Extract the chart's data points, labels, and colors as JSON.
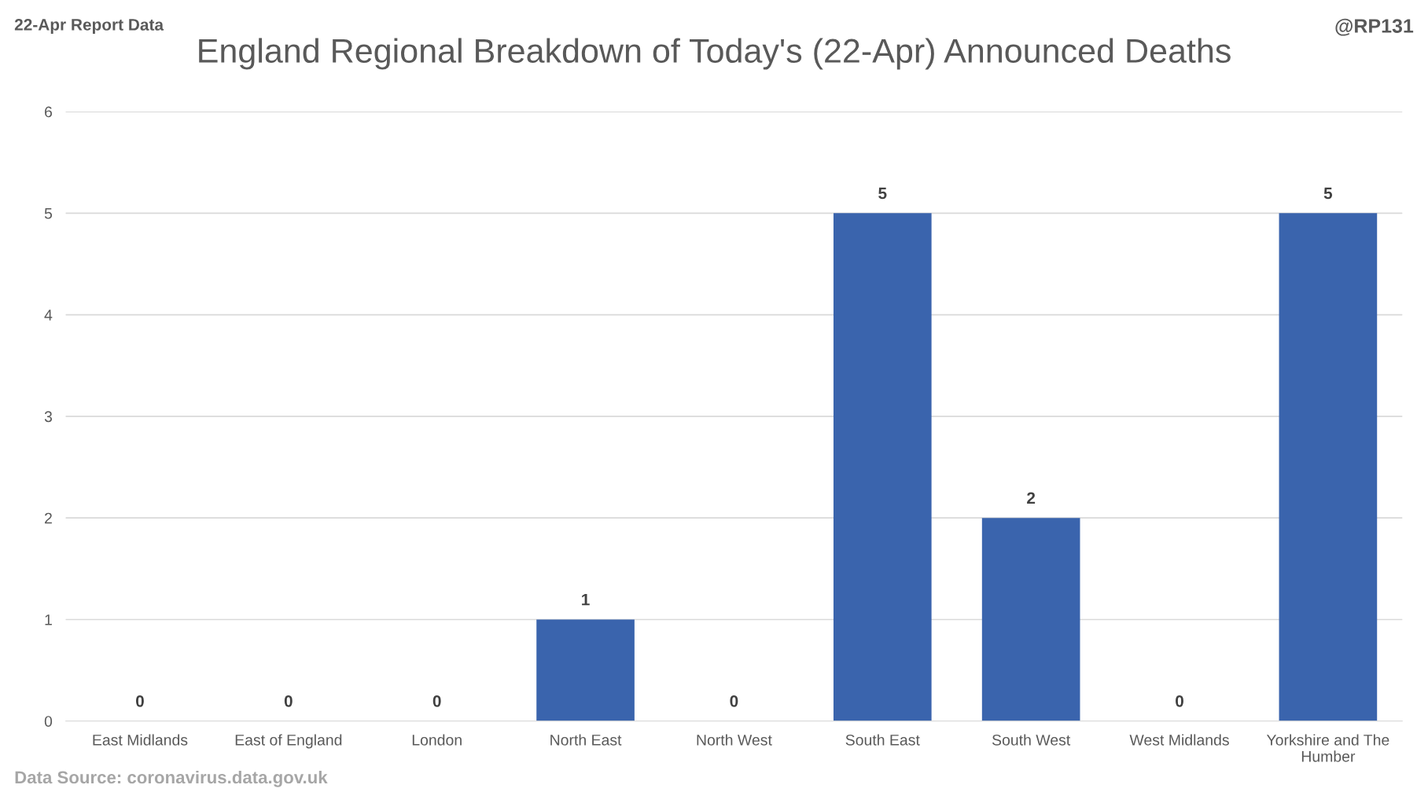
{
  "chart_data": {
    "type": "bar",
    "title": "England Regional Breakdown of Today's (22-Apr) Announced Deaths",
    "categories": [
      "East Midlands",
      "East of England",
      "London",
      "North East",
      "North West",
      "South East",
      "South West",
      "West Midlands",
      "Yorkshire and The Humber"
    ],
    "values": [
      0,
      0,
      0,
      1,
      0,
      5,
      2,
      0,
      5
    ],
    "color": "#3a64ad",
    "ylim": [
      0,
      6
    ],
    "yticks": [
      0,
      1,
      2,
      3,
      4,
      5,
      6
    ],
    "grid": "y",
    "data_labels": true,
    "annotations": [
      "22-Apr Report Data",
      "@RP131",
      "Data Source: coronavirus.data.gov.uk"
    ]
  }
}
